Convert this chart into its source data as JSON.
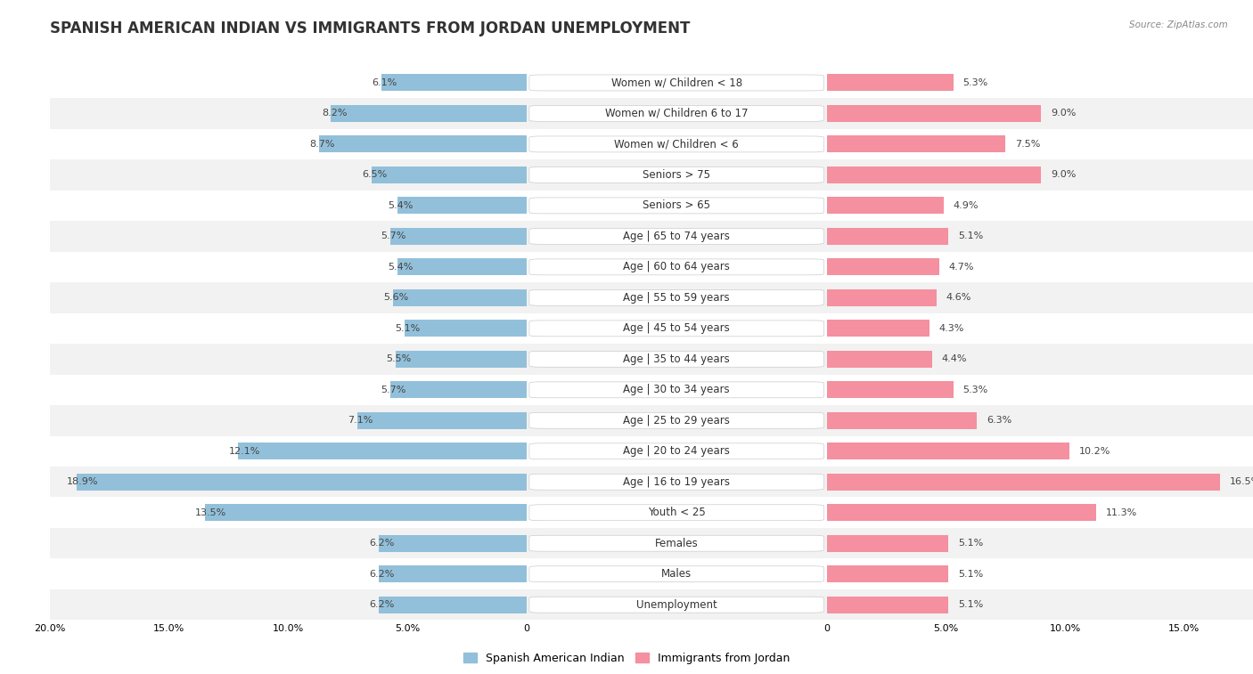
{
  "title": "Spanish American Indian vs Immigrants from Jordan Unemployment",
  "source": "Source: ZipAtlas.com",
  "categories": [
    "Unemployment",
    "Males",
    "Females",
    "Youth < 25",
    "Age | 16 to 19 years",
    "Age | 20 to 24 years",
    "Age | 25 to 29 years",
    "Age | 30 to 34 years",
    "Age | 35 to 44 years",
    "Age | 45 to 54 years",
    "Age | 55 to 59 years",
    "Age | 60 to 64 years",
    "Age | 65 to 74 years",
    "Seniors > 65",
    "Seniors > 75",
    "Women w/ Children < 6",
    "Women w/ Children 6 to 17",
    "Women w/ Children < 18"
  ],
  "left_values": [
    6.2,
    6.2,
    6.2,
    13.5,
    18.9,
    12.1,
    7.1,
    5.7,
    5.5,
    5.1,
    5.6,
    5.4,
    5.7,
    5.4,
    6.5,
    8.7,
    8.2,
    6.1
  ],
  "right_values": [
    5.1,
    5.1,
    5.1,
    11.3,
    16.5,
    10.2,
    6.3,
    5.3,
    4.4,
    4.3,
    4.6,
    4.7,
    5.1,
    4.9,
    9.0,
    7.5,
    9.0,
    5.3
  ],
  "left_color": "#92c0da",
  "right_color": "#f4909f",
  "left_label": "Spanish American Indian",
  "right_label": "Immigrants from Jordan",
  "xlim": 20.0,
  "bg_color": "#ffffff",
  "row_colors": [
    "#f2f2f2",
    "#ffffff"
  ],
  "label_bg": "#ffffff",
  "title_fontsize": 12,
  "label_fontsize": 8.5,
  "value_fontsize": 8,
  "tick_fontsize": 8
}
